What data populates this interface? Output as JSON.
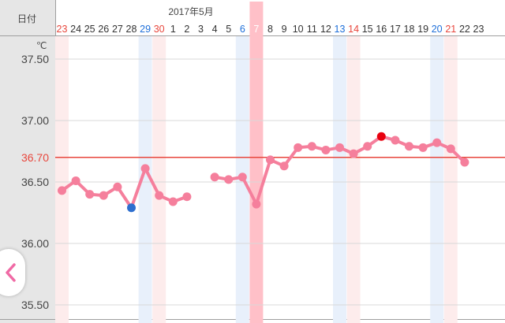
{
  "header": {
    "date_label": "日付",
    "month_label": "2017年5月",
    "unit_label": "℃"
  },
  "y_ticks": [
    "37.50",
    "37.00",
    "36.70",
    "36.50",
    "36.00",
    "35.50"
  ],
  "colors": {
    "line": "#f57f9c",
    "sunday": "#1e6fd9",
    "saturday_holiday": "#e8463c",
    "weekday": "#333333",
    "blue_band": "#e8f0fb",
    "red_band": "#fdecec",
    "today_band": "#ffc0c8",
    "reference_line": "#e8463c",
    "min_marker": "#2e6fcf",
    "max_marker": "#e8000e"
  },
  "nav": {
    "prev_icon": "chevron-left-icon"
  },
  "chart_data": {
    "type": "line",
    "ylim": [
      35.4,
      37.8
    ],
    "reference_line": 36.7,
    "categories": [
      "23",
      "24",
      "25",
      "26",
      "27",
      "28",
      "29",
      "30",
      "1",
      "2",
      "3",
      "4",
      "5",
      "6",
      "7",
      "8",
      "9",
      "10",
      "11",
      "12",
      "13",
      "14",
      "15",
      "16",
      "17",
      "18",
      "19",
      "20",
      "21",
      "22",
      "23"
    ],
    "day_types": [
      "red",
      "normal",
      "normal",
      "normal",
      "normal",
      "normal",
      "blue",
      "red",
      "normal",
      "normal",
      "normal",
      "normal",
      "normal",
      "blue",
      "today",
      "normal",
      "normal",
      "normal",
      "normal",
      "normal",
      "blue",
      "red",
      "normal",
      "normal",
      "normal",
      "normal",
      "normal",
      "blue",
      "red",
      "normal",
      "normal"
    ],
    "series": [
      {
        "values": [
          36.43,
          36.51,
          36.4,
          36.39,
          36.46,
          36.29,
          36.61,
          36.39,
          36.34,
          36.38,
          null,
          36.54,
          36.52,
          36.54,
          36.32,
          36.68,
          36.63,
          36.78,
          36.79,
          36.76,
          36.78,
          36.73,
          36.79,
          36.87,
          36.84,
          36.79,
          36.78,
          36.82,
          36.77,
          36.66,
          null
        ],
        "min_index": 5,
        "max_index": 23
      }
    ]
  }
}
